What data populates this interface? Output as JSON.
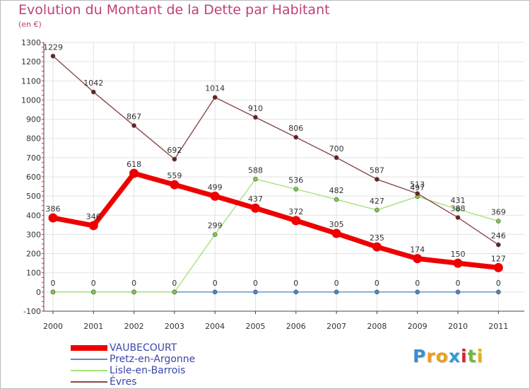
{
  "header": {
    "title": "Evolution du Montant de la Dette par Habitant",
    "unit": "(en €)"
  },
  "logo": {
    "letters": [
      "P",
      "r",
      "o",
      "x",
      "i",
      "t",
      "i"
    ],
    "colors": [
      "#3b8fd1",
      "#f29a1f",
      "#e8a21a",
      "#2f9ad8",
      "#d8262b",
      "#6fb83f",
      "#e0b51c"
    ]
  },
  "chart_data": {
    "type": "line",
    "title": "Evolution du Montant de la Dette par Habitant",
    "ylabel": "(en €)",
    "xlabel": "",
    "x": [
      "2000",
      "2001",
      "2002",
      "2003",
      "2004",
      "2005",
      "2006",
      "2007",
      "2008",
      "2009",
      "2010",
      "2011"
    ],
    "ylim": [
      -100,
      1300
    ],
    "yticks": [
      -100,
      0,
      100,
      200,
      300,
      400,
      500,
      600,
      700,
      800,
      900,
      1000,
      1100,
      1200,
      1300
    ],
    "grid": true,
    "series": [
      {
        "name": "Pretz-en-Argonne",
        "color": "#5b8fc6",
        "point_color": "#4a86c8",
        "thick": false,
        "values": [
          0,
          0,
          0,
          0,
          0,
          0,
          0,
          0,
          0,
          0,
          0,
          0
        ],
        "labels": [
          "",
          "",
          "",
          "",
          "0",
          "0",
          "0",
          "0",
          "0",
          "0",
          "0",
          "0"
        ]
      },
      {
        "name": "Lisle-en-Barrois",
        "color": "#a6e27a",
        "point_color": "#7fc94a",
        "thick": false,
        "values": [
          0,
          0,
          0,
          0,
          299,
          588,
          536,
          482,
          427,
          497,
          431,
          369
        ],
        "labels": [
          "",
          "",
          "",
          "",
          "299",
          "588",
          "536",
          "482",
          "427",
          "497",
          "431",
          "369"
        ]
      },
      {
        "name": "Évres",
        "color": "#8a4a4a",
        "point_color": "#6b1f1f",
        "thick": false,
        "values": [
          1229,
          1042,
          867,
          692,
          1014,
          910,
          806,
          700,
          587,
          513,
          388,
          246
        ],
        "labels": [
          "1229",
          "1042",
          "867",
          "692",
          "1014",
          "910",
          "806",
          "700",
          "587",
          "513",
          "388",
          "246"
        ]
      },
      {
        "name": "VAUBECOURT",
        "color": "#ee0000",
        "point_color": "#ee0000",
        "thick": true,
        "values": [
          386,
          346,
          618,
          559,
          499,
          437,
          372,
          305,
          235,
          174,
          150,
          127
        ],
        "labels": [
          "386",
          "346",
          "618",
          "559",
          "499",
          "437",
          "372",
          "305",
          "235",
          "174",
          "150",
          "127"
        ]
      }
    ],
    "zero_labels": [
      "0",
      "0",
      "0",
      "0"
    ],
    "legend_order": [
      "VAUBECOURT",
      "Pretz-en-Argonne",
      "Lisle-en-Barrois",
      "Évres"
    ],
    "legend_position": "bottom-left"
  }
}
